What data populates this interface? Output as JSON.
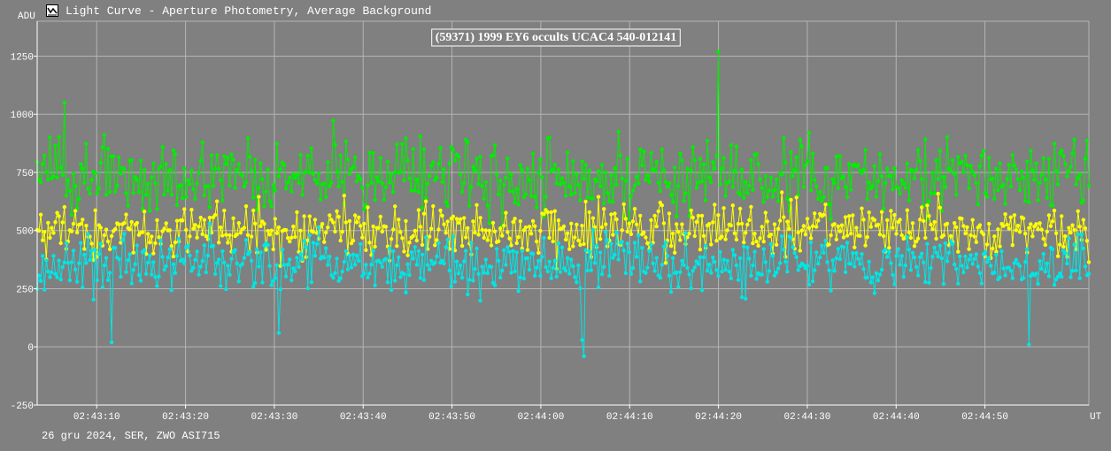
{
  "window": {
    "title": "Light Curve - Aperture Photometry, Average Background",
    "icon": "chart-icon"
  },
  "footer": {
    "text": "26 gru 2024, SER, ZWO ASI715"
  },
  "colors": {
    "background": "#808080",
    "grid": "#b4b4b4",
    "green": "#00ee00",
    "yellow": "#ffff00",
    "cyan": "#00e5e5"
  },
  "chart_data": {
    "type": "line",
    "title": "(59371) 1999 EY6 occults UCAC4 540-012141",
    "ylabel": "ADU",
    "xlabel": "UT",
    "ylim": [
      -250,
      1400
    ],
    "xlim": [
      "02:43:03.3",
      "02:45:01.7"
    ],
    "yticks": [
      -250,
      0,
      250,
      500,
      750,
      1000,
      1250
    ],
    "xticks": [
      "02:43:10",
      "02:43:20",
      "02:43:30",
      "02:43:40",
      "02:43:50",
      "02:44:00",
      "02:44:10",
      "02:44:20",
      "02:44:30",
      "02:44:40",
      "02:44:50"
    ],
    "x_range_seconds": [
      3.3,
      121.7
    ],
    "grid": true,
    "series": [
      {
        "name": "",
        "color": "#00ee00",
        "mean": 730,
        "spread": 115,
        "points": 580,
        "features": [
          {
            "x": "02:44:19.9",
            "y": 1270
          },
          {
            "x": "02:43:06.4",
            "y": 1050
          }
        ]
      },
      {
        "name": "",
        "color": "#ffff00",
        "mean": 500,
        "spread": 85,
        "points": 580
      },
      {
        "name": "",
        "color": "#00e5e5",
        "mean": 360,
        "spread": 85,
        "points": 580,
        "features": [
          {
            "x": "02:43:11.7",
            "y": 20
          },
          {
            "x": "02:43:30.5",
            "y": 60
          },
          {
            "x": "02:44:04.6",
            "y": 30
          },
          {
            "x": "02:44:04.8",
            "y": -40
          },
          {
            "x": "02:44:55.0",
            "y": 10
          }
        ]
      }
    ]
  }
}
